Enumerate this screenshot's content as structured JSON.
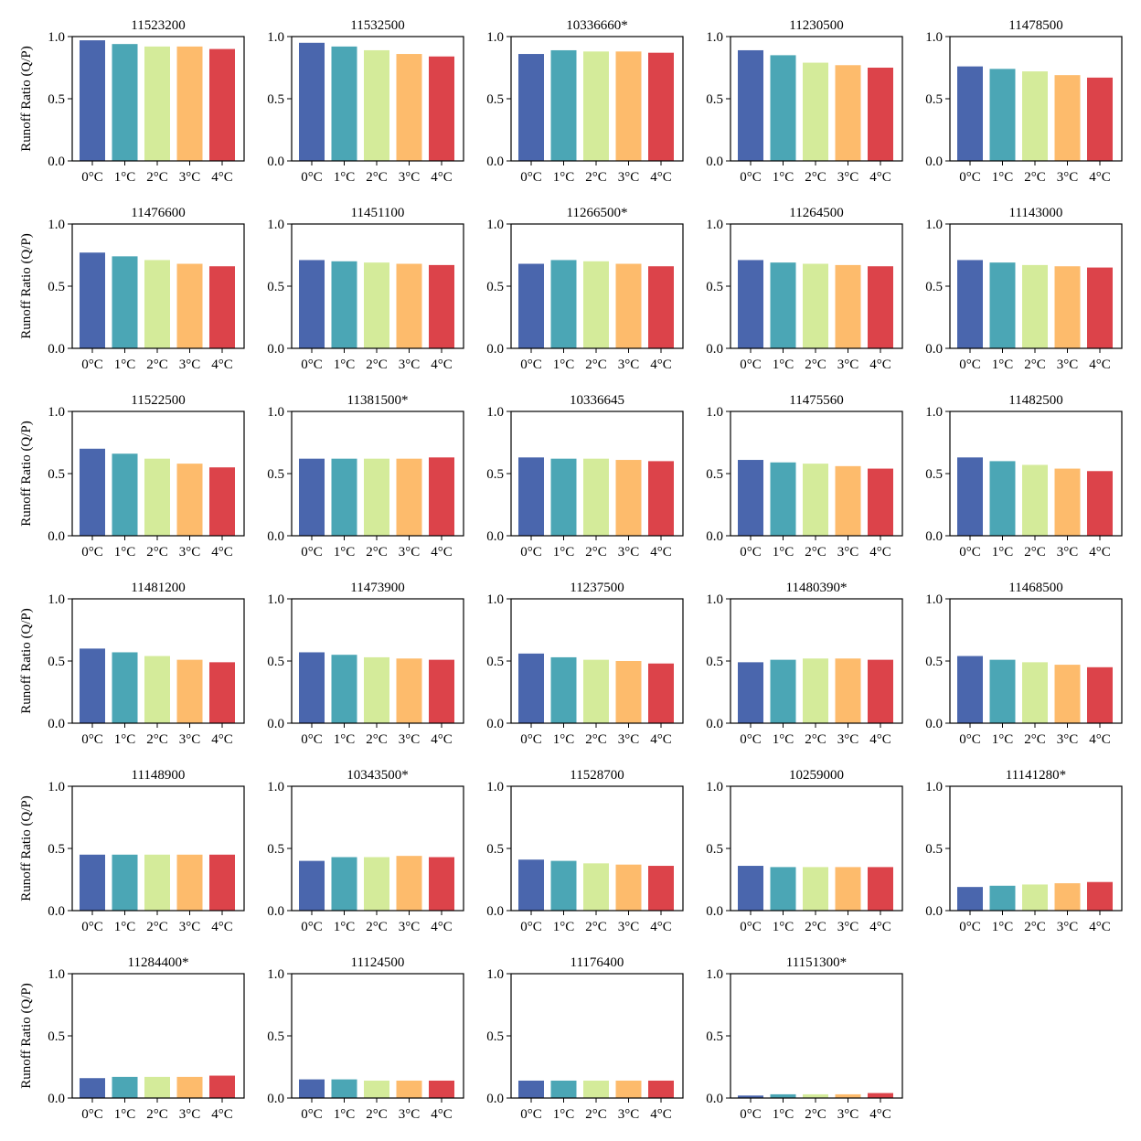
{
  "figure": {
    "ylabel": "Runoff Ratio (Q/P)",
    "categories": [
      "0°C",
      "1°C",
      "2°C",
      "3°C",
      "4°C"
    ],
    "yticks": [
      "0.0",
      "0.5",
      "1.0"
    ],
    "colors": [
      "#4a66ad",
      "#4ba6b5",
      "#d4eb9a",
      "#fdbb6c",
      "#dc434a"
    ]
  },
  "chart_data": [
    {
      "type": "bar",
      "title": "11523200",
      "categories": [
        "0°C",
        "1°C",
        "2°C",
        "3°C",
        "4°C"
      ],
      "values": [
        0.97,
        0.94,
        0.92,
        0.92,
        0.9
      ],
      "ylim": [
        0,
        1
      ],
      "ylabel": "Runoff Ratio (Q/P)"
    },
    {
      "type": "bar",
      "title": "11532500",
      "categories": [
        "0°C",
        "1°C",
        "2°C",
        "3°C",
        "4°C"
      ],
      "values": [
        0.95,
        0.92,
        0.89,
        0.86,
        0.84
      ],
      "ylim": [
        0,
        1
      ],
      "ylabel": ""
    },
    {
      "type": "bar",
      "title": "10336660*",
      "categories": [
        "0°C",
        "1°C",
        "2°C",
        "3°C",
        "4°C"
      ],
      "values": [
        0.86,
        0.89,
        0.88,
        0.88,
        0.87
      ],
      "ylim": [
        0,
        1
      ],
      "ylabel": ""
    },
    {
      "type": "bar",
      "title": "11230500",
      "categories": [
        "0°C",
        "1°C",
        "2°C",
        "3°C",
        "4°C"
      ],
      "values": [
        0.89,
        0.85,
        0.79,
        0.77,
        0.75
      ],
      "ylim": [
        0,
        1
      ],
      "ylabel": ""
    },
    {
      "type": "bar",
      "title": "11478500",
      "categories": [
        "0°C",
        "1°C",
        "2°C",
        "3°C",
        "4°C"
      ],
      "values": [
        0.76,
        0.74,
        0.72,
        0.69,
        0.67
      ],
      "ylim": [
        0,
        1
      ],
      "ylabel": ""
    },
    {
      "type": "bar",
      "title": "11476600",
      "categories": [
        "0°C",
        "1°C",
        "2°C",
        "3°C",
        "4°C"
      ],
      "values": [
        0.77,
        0.74,
        0.71,
        0.68,
        0.66
      ],
      "ylim": [
        0,
        1
      ],
      "ylabel": "Runoff Ratio (Q/P)"
    },
    {
      "type": "bar",
      "title": "11451100",
      "categories": [
        "0°C",
        "1°C",
        "2°C",
        "3°C",
        "4°C"
      ],
      "values": [
        0.71,
        0.7,
        0.69,
        0.68,
        0.67
      ],
      "ylim": [
        0,
        1
      ],
      "ylabel": ""
    },
    {
      "type": "bar",
      "title": "11266500*",
      "categories": [
        "0°C",
        "1°C",
        "2°C",
        "3°C",
        "4°C"
      ],
      "values": [
        0.68,
        0.71,
        0.7,
        0.68,
        0.66
      ],
      "ylim": [
        0,
        1
      ],
      "ylabel": ""
    },
    {
      "type": "bar",
      "title": "11264500",
      "categories": [
        "0°C",
        "1°C",
        "2°C",
        "3°C",
        "4°C"
      ],
      "values": [
        0.71,
        0.69,
        0.68,
        0.67,
        0.66
      ],
      "ylim": [
        0,
        1
      ],
      "ylabel": ""
    },
    {
      "type": "bar",
      "title": "11143000",
      "categories": [
        "0°C",
        "1°C",
        "2°C",
        "3°C",
        "4°C"
      ],
      "values": [
        0.71,
        0.69,
        0.67,
        0.66,
        0.65
      ],
      "ylim": [
        0,
        1
      ],
      "ylabel": ""
    },
    {
      "type": "bar",
      "title": "11522500",
      "categories": [
        "0°C",
        "1°C",
        "2°C",
        "3°C",
        "4°C"
      ],
      "values": [
        0.7,
        0.66,
        0.62,
        0.58,
        0.55
      ],
      "ylim": [
        0,
        1
      ],
      "ylabel": "Runoff Ratio (Q/P)"
    },
    {
      "type": "bar",
      "title": "11381500*",
      "categories": [
        "0°C",
        "1°C",
        "2°C",
        "3°C",
        "4°C"
      ],
      "values": [
        0.62,
        0.62,
        0.62,
        0.62,
        0.63
      ],
      "ylim": [
        0,
        1
      ],
      "ylabel": ""
    },
    {
      "type": "bar",
      "title": "10336645",
      "categories": [
        "0°C",
        "1°C",
        "2°C",
        "3°C",
        "4°C"
      ],
      "values": [
        0.63,
        0.62,
        0.62,
        0.61,
        0.6
      ],
      "ylim": [
        0,
        1
      ],
      "ylabel": ""
    },
    {
      "type": "bar",
      "title": "11475560",
      "categories": [
        "0°C",
        "1°C",
        "2°C",
        "3°C",
        "4°C"
      ],
      "values": [
        0.61,
        0.59,
        0.58,
        0.56,
        0.54
      ],
      "ylim": [
        0,
        1
      ],
      "ylabel": ""
    },
    {
      "type": "bar",
      "title": "11482500",
      "categories": [
        "0°C",
        "1°C",
        "2°C",
        "3°C",
        "4°C"
      ],
      "values": [
        0.63,
        0.6,
        0.57,
        0.54,
        0.52
      ],
      "ylim": [
        0,
        1
      ],
      "ylabel": ""
    },
    {
      "type": "bar",
      "title": "11481200",
      "categories": [
        "0°C",
        "1°C",
        "2°C",
        "3°C",
        "4°C"
      ],
      "values": [
        0.6,
        0.57,
        0.54,
        0.51,
        0.49
      ],
      "ylim": [
        0,
        1
      ],
      "ylabel": "Runoff Ratio (Q/P)"
    },
    {
      "type": "bar",
      "title": "11473900",
      "categories": [
        "0°C",
        "1°C",
        "2°C",
        "3°C",
        "4°C"
      ],
      "values": [
        0.57,
        0.55,
        0.53,
        0.52,
        0.51
      ],
      "ylim": [
        0,
        1
      ],
      "ylabel": ""
    },
    {
      "type": "bar",
      "title": "11237500",
      "categories": [
        "0°C",
        "1°C",
        "2°C",
        "3°C",
        "4°C"
      ],
      "values": [
        0.56,
        0.53,
        0.51,
        0.5,
        0.48
      ],
      "ylim": [
        0,
        1
      ],
      "ylabel": ""
    },
    {
      "type": "bar",
      "title": "11480390*",
      "categories": [
        "0°C",
        "1°C",
        "2°C",
        "3°C",
        "4°C"
      ],
      "values": [
        0.49,
        0.51,
        0.52,
        0.52,
        0.51
      ],
      "ylim": [
        0,
        1
      ],
      "ylabel": ""
    },
    {
      "type": "bar",
      "title": "11468500",
      "categories": [
        "0°C",
        "1°C",
        "2°C",
        "3°C",
        "4°C"
      ],
      "values": [
        0.54,
        0.51,
        0.49,
        0.47,
        0.45
      ],
      "ylim": [
        0,
        1
      ],
      "ylabel": ""
    },
    {
      "type": "bar",
      "title": "11148900",
      "categories": [
        "0°C",
        "1°C",
        "2°C",
        "3°C",
        "4°C"
      ],
      "values": [
        0.45,
        0.45,
        0.45,
        0.45,
        0.45
      ],
      "ylim": [
        0,
        1
      ],
      "ylabel": "Runoff Ratio (Q/P)"
    },
    {
      "type": "bar",
      "title": "10343500*",
      "categories": [
        "0°C",
        "1°C",
        "2°C",
        "3°C",
        "4°C"
      ],
      "values": [
        0.4,
        0.43,
        0.43,
        0.44,
        0.43
      ],
      "ylim": [
        0,
        1
      ],
      "ylabel": ""
    },
    {
      "type": "bar",
      "title": "11528700",
      "categories": [
        "0°C",
        "1°C",
        "2°C",
        "3°C",
        "4°C"
      ],
      "values": [
        0.41,
        0.4,
        0.38,
        0.37,
        0.36
      ],
      "ylim": [
        0,
        1
      ],
      "ylabel": ""
    },
    {
      "type": "bar",
      "title": "10259000",
      "categories": [
        "0°C",
        "1°C",
        "2°C",
        "3°C",
        "4°C"
      ],
      "values": [
        0.36,
        0.35,
        0.35,
        0.35,
        0.35
      ],
      "ylim": [
        0,
        1
      ],
      "ylabel": ""
    },
    {
      "type": "bar",
      "title": "11141280*",
      "categories": [
        "0°C",
        "1°C",
        "2°C",
        "3°C",
        "4°C"
      ],
      "values": [
        0.19,
        0.2,
        0.21,
        0.22,
        0.23
      ],
      "ylim": [
        0,
        1
      ],
      "ylabel": ""
    },
    {
      "type": "bar",
      "title": "11284400*",
      "categories": [
        "0°C",
        "1°C",
        "2°C",
        "3°C",
        "4°C"
      ],
      "values": [
        0.16,
        0.17,
        0.17,
        0.17,
        0.18
      ],
      "ylim": [
        0,
        1
      ],
      "ylabel": "Runoff Ratio (Q/P)"
    },
    {
      "type": "bar",
      "title": "11124500",
      "categories": [
        "0°C",
        "1°C",
        "2°C",
        "3°C",
        "4°C"
      ],
      "values": [
        0.15,
        0.15,
        0.14,
        0.14,
        0.14
      ],
      "ylim": [
        0,
        1
      ],
      "ylabel": ""
    },
    {
      "type": "bar",
      "title": "11176400",
      "categories": [
        "0°C",
        "1°C",
        "2°C",
        "3°C",
        "4°C"
      ],
      "values": [
        0.14,
        0.14,
        0.14,
        0.14,
        0.14
      ],
      "ylim": [
        0,
        1
      ],
      "ylabel": ""
    },
    {
      "type": "bar",
      "title": "11151300*",
      "categories": [
        "0°C",
        "1°C",
        "2°C",
        "3°C",
        "4°C"
      ],
      "values": [
        0.02,
        0.03,
        0.03,
        0.03,
        0.04
      ],
      "ylim": [
        0,
        1
      ],
      "ylabel": ""
    }
  ]
}
